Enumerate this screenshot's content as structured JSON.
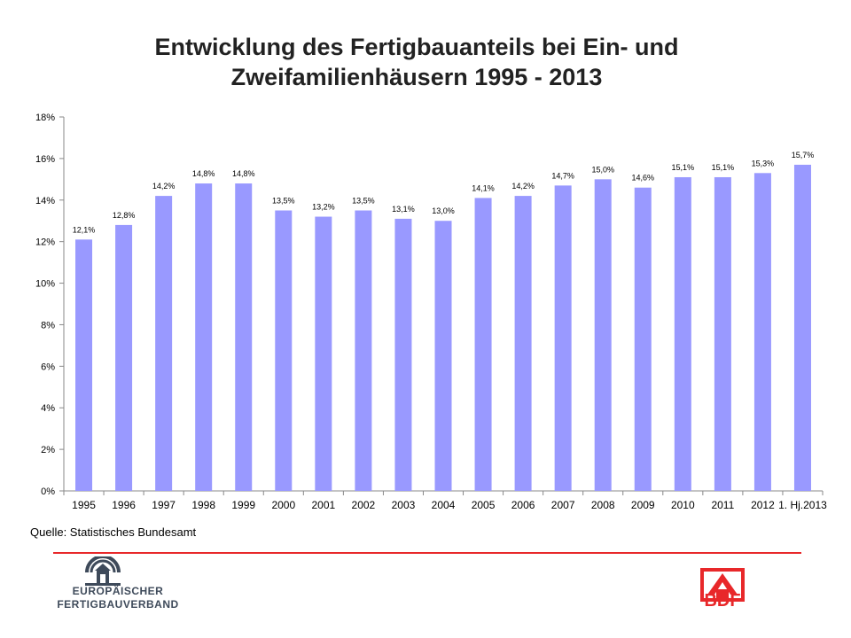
{
  "title_line1": "Entwicklung des Fertigbauanteils bei Ein- und",
  "title_line2": "Zweifamilienhäusern 1995 - 2013",
  "source": "Quelle: Statistisches Bundesamt",
  "logos": {
    "efv_line1": "EUROPÄISCHER",
    "efv_line2": "FERTIGBAUVERBAND",
    "bdf": "BDF"
  },
  "colors": {
    "bar": "#9999ff",
    "accent_red": "#e8282a",
    "efv_blue": "#3e4a5a"
  },
  "chart_data": {
    "type": "bar",
    "categories": [
      "1995",
      "1996",
      "1997",
      "1998",
      "1999",
      "2000",
      "2001",
      "2002",
      "2003",
      "2004",
      "2005",
      "2006",
      "2007",
      "2008",
      "2009",
      "2010",
      "2011",
      "2012",
      "1. Hj.2013"
    ],
    "values": [
      12.1,
      12.8,
      14.2,
      14.8,
      14.8,
      13.5,
      13.2,
      13.5,
      13.1,
      13.0,
      14.1,
      14.2,
      14.7,
      15.0,
      14.6,
      15.1,
      15.1,
      15.3,
      15.7
    ],
    "data_labels": [
      "12,1%",
      "12,8%",
      "14,2%",
      "14,8%",
      "14,8%",
      "13,5%",
      "13,2%",
      "13,5%",
      "13,1%",
      "13,0%",
      "14,1%",
      "14,2%",
      "14,7%",
      "15,0%",
      "14,6%",
      "15,1%",
      "15,1%",
      "15,3%",
      "15,7%"
    ],
    "ylim": [
      0,
      18
    ],
    "yticks": [
      0,
      2,
      4,
      6,
      8,
      10,
      12,
      14,
      16,
      18
    ],
    "ytick_labels": [
      "0%",
      "2%",
      "4%",
      "6%",
      "8%",
      "10%",
      "12%",
      "14%",
      "16%",
      "18%"
    ],
    "grid": false,
    "legend": "none"
  }
}
